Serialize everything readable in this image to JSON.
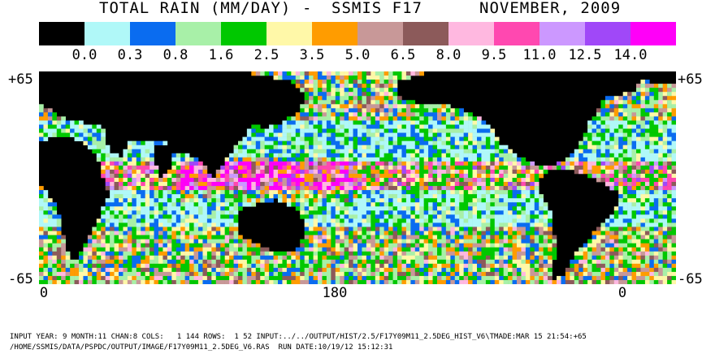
{
  "title": {
    "left": "TOTAL RAIN (MM/DAY)",
    "dash": "-",
    "sensor": "SSMIS F17",
    "date": "NOVEMBER, 2009"
  },
  "scale": {
    "colors": [
      "#000000",
      "#b0f8f8",
      "#0a6cf0",
      "#a8f0a8",
      "#00c800",
      "#fff8a8",
      "#ff9c00",
      "#c89898",
      "#8c5a5a",
      "#ffb8e0",
      "#ff48b0",
      "#cc98ff",
      "#a048f8",
      "#ff00f8"
    ],
    "labels": [
      "0.0",
      "0.3",
      "0.8",
      "1.6",
      "2.5",
      "3.5",
      "5.0",
      "6.5",
      "8.0",
      "9.5",
      "11.0",
      "12.5",
      "14.0"
    ]
  },
  "axes": {
    "lat_top": "+65",
    "lat_bottom": "-65",
    "lon_labels": [
      "0",
      "180",
      "0"
    ]
  },
  "footer": {
    "line1": "INPUT YEAR: 9 MONTH:11 CHAN:8 COLS:   1 144 ROWS:  1 52 INPUT:../../OUTPUT/HIST/2.5/F17Y09M11_2.5DEG_HIST_V6\\TMADE:MAR 15 21:54:+65",
    "line2": "/HOME/SSMIS/DATA/PSPDC/OUTPUT/IMAGE/F17Y09M11_2.5DEG_V6.RAS  RUN DATE:10/19/12 15:12:31"
  }
}
